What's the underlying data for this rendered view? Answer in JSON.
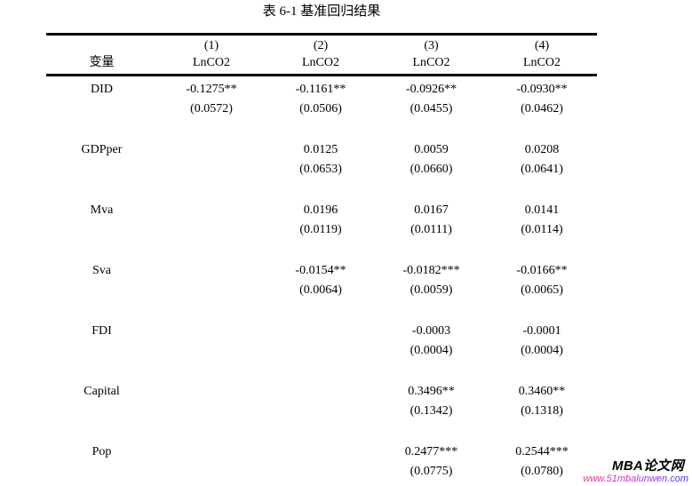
{
  "page": {
    "title": "表 6-1 基准回归结果"
  },
  "table": {
    "header": {
      "variable_label": "变量",
      "columns": [
        {
          "number": "(1)",
          "dv": "LnCO2"
        },
        {
          "number": "(2)",
          "dv": "LnCO2"
        },
        {
          "number": "(3)",
          "dv": "LnCO2"
        },
        {
          "number": "(4)",
          "dv": "LnCO2"
        }
      ]
    },
    "rows": [
      {
        "variable": "DID",
        "coef": [
          "-0.1275**",
          "-0.1161**",
          "-0.0926**",
          "-0.0930**"
        ],
        "se": [
          "(0.0572)",
          "(0.0506)",
          "(0.0455)",
          "(0.0462)"
        ]
      },
      {
        "variable": "GDPper",
        "coef": [
          "",
          "0.0125",
          "0.0059",
          "0.0208"
        ],
        "se": [
          "",
          "(0.0653)",
          "(0.0660)",
          "(0.0641)"
        ]
      },
      {
        "variable": "Mva",
        "coef": [
          "",
          "0.0196",
          "0.0167",
          "0.0141"
        ],
        "se": [
          "",
          "(0.0119)",
          "(0.0111)",
          "(0.0114)"
        ]
      },
      {
        "variable": "Sva",
        "coef": [
          "",
          "-0.0154**",
          "-0.0182***",
          "-0.0166**"
        ],
        "se": [
          "",
          "(0.0064)",
          "(0.0059)",
          "(0.0065)"
        ]
      },
      {
        "variable": "FDI",
        "coef": [
          "",
          "",
          "-0.0003",
          "-0.0001"
        ],
        "se": [
          "",
          "",
          "(0.0004)",
          "(0.0004)"
        ]
      },
      {
        "variable": "Capital",
        "coef": [
          "",
          "",
          "0.3496**",
          "0.3460**"
        ],
        "se": [
          "",
          "",
          "(0.1342)",
          "(0.1318)"
        ]
      },
      {
        "variable": "Pop",
        "coef": [
          "",
          "",
          "0.2477***",
          "0.2544***"
        ],
        "se": [
          "",
          "",
          "(0.0775)",
          "(0.0780)"
        ]
      }
    ]
  },
  "watermark": {
    "site_name": "MBA论文网",
    "site_url": "www.51mbalunwen.com",
    "colors": {
      "url_gradient_start": "#ff2d9a",
      "url_gradient_mid": "#b233d9",
      "url_gradient_end": "#4b2dff"
    }
  }
}
